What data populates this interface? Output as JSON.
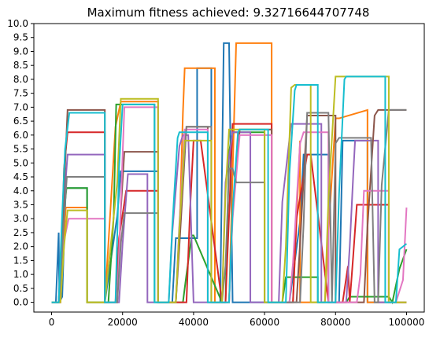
{
  "chart_data": {
    "type": "line",
    "title": "Maximum fitness achieved: 9.32716644707748",
    "xlabel": "",
    "ylabel": "",
    "xlim": [
      -5000,
      105000
    ],
    "ylim": [
      -0.35,
      10.0
    ],
    "x_ticks": [
      0,
      20000,
      40000,
      60000,
      80000,
      100000
    ],
    "y_ticks": [
      0.0,
      0.5,
      1.0,
      1.5,
      2.0,
      2.5,
      3.0,
      3.5,
      4.0,
      4.5,
      5.0,
      5.5,
      6.0,
      6.5,
      7.0,
      7.5,
      8.0,
      8.5,
      9.0,
      9.5,
      10.0
    ],
    "grid": false,
    "legend": "none",
    "series_colors": [
      "#1f77b4",
      "#ff7f0e",
      "#2ca02c",
      "#d62728",
      "#9467bd",
      "#8c564b",
      "#e377c2",
      "#7f7f7f",
      "#bcbd22",
      "#17becf"
    ],
    "series": [
      {
        "x": [
          0,
          1200,
          2000,
          2200,
          3000,
          4000,
          10000,
          10000,
          15000,
          15000,
          18500,
          19500,
          30000,
          30000,
          34000,
          35000,
          41000,
          41000,
          45000,
          45000,
          47500,
          48500,
          50000,
          51000,
          60000,
          60000,
          67000,
          67000,
          70000,
          71000,
          78000,
          78000,
          81000,
          82000,
          89000,
          89000,
          95000,
          95000,
          100000
        ],
        "y": [
          0,
          0,
          2.5,
          0,
          0.2,
          4.1,
          4.1,
          0,
          0,
          0,
          3.1,
          4.7,
          4.7,
          0,
          0,
          2.3,
          2.3,
          8.4,
          8.4,
          0,
          0,
          9.3,
          9.3,
          0,
          0,
          0,
          0,
          0,
          2.9,
          5.3,
          5.3,
          0,
          0,
          5.8,
          5.8,
          0,
          0,
          0,
          0
        ]
      },
      {
        "x": [
          0,
          2000,
          3000,
          4000,
          10000,
          10000,
          15000,
          15000,
          18000,
          19500,
          30000,
          30000,
          35000,
          36000,
          37000,
          37500,
          46000,
          46000,
          50000,
          50000,
          52000,
          62000,
          62000,
          67000,
          68000,
          70000,
          70000,
          77000,
          78000,
          80000,
          81000,
          89000,
          89000,
          95000,
          95000,
          100000
        ],
        "y": [
          0,
          0,
          1.4,
          3.4,
          3.4,
          0,
          0,
          0,
          6.3,
          7.2,
          7.2,
          0,
          0,
          2.4,
          6.8,
          8.4,
          8.4,
          0,
          0,
          0,
          9.3,
          9.3,
          0,
          0,
          0,
          5.8,
          0,
          0,
          2.5,
          6.6,
          6.6,
          6.9,
          0,
          0,
          0,
          0
        ]
      },
      {
        "x": [
          0,
          2000,
          3000,
          4200,
          10000,
          10000,
          15000,
          16000,
          17500,
          18200,
          29000,
          29000,
          37000,
          38000,
          39500,
          40000,
          48000,
          49000,
          50000,
          51000,
          60000,
          60000,
          65000,
          66000,
          75000,
          75000,
          83000,
          84000,
          95000,
          96000,
          98000,
          100000
        ],
        "y": [
          0,
          0,
          2.6,
          4.1,
          4.1,
          0,
          0,
          0,
          3.1,
          7.1,
          7.1,
          0,
          0,
          1.0,
          2.4,
          2.4,
          0,
          0,
          5.4,
          6.1,
          6.1,
          0,
          0,
          0.9,
          0.9,
          0,
          0,
          0.2,
          0.2,
          0,
          1.2,
          1.9
        ]
      },
      {
        "x": [
          0,
          2500,
          3500,
          4500,
          15000,
          15000,
          18000,
          19000,
          21000,
          21500,
          30000,
          30000,
          38000,
          39000,
          40000,
          42000,
          48000,
          49000,
          50000,
          51000,
          62000,
          62000,
          68000,
          69000,
          72000,
          73000,
          78000,
          78000,
          82000,
          83500,
          84000,
          85000,
          86000,
          87000,
          95000,
          95000,
          100000
        ],
        "y": [
          0,
          0,
          4.8,
          6.1,
          6.1,
          0,
          0,
          2.3,
          4.0,
          4.0,
          4.0,
          0,
          0,
          3.3,
          5.8,
          5.8,
          0,
          0,
          3.1,
          6.4,
          6.4,
          0,
          0,
          3.0,
          5.3,
          5.3,
          0,
          0,
          0,
          1.3,
          0,
          1.7,
          3.5,
          3.5,
          3.5,
          0,
          0
        ]
      },
      {
        "x": [
          0,
          2000,
          3000,
          4500,
          15000,
          15000,
          19000,
          20000,
          21500,
          22000,
          27000,
          27000,
          33000,
          34000,
          36000,
          37000,
          38500,
          40000,
          41000,
          43000,
          45000,
          48000,
          49000,
          51000,
          56000,
          56000,
          64000,
          65000,
          67500,
          68000,
          76000,
          76000,
          83000,
          84000,
          85000,
          85500,
          92000,
          92000,
          100000
        ],
        "y": [
          0,
          0,
          2.7,
          5.3,
          5.3,
          0,
          0,
          2.1,
          4.6,
          4.6,
          4.6,
          0,
          0,
          2.5,
          5.6,
          6.0,
          6.0,
          0,
          0,
          0,
          0,
          0,
          4.3,
          6.1,
          6.1,
          0,
          0,
          3.6,
          6.4,
          6.4,
          6.4,
          0,
          0,
          2.0,
          4.6,
          5.8,
          5.8,
          0,
          0
        ]
      },
      {
        "x": [
          0,
          2200,
          3200,
          4500,
          15000,
          15000,
          18500,
          19500,
          20500,
          21500,
          30000,
          30000,
          35000,
          36000,
          38000,
          44000,
          44000,
          50000,
          51000,
          53000,
          62000,
          62000,
          69000,
          70000,
          72000,
          73000,
          80000,
          80000,
          88000,
          89000,
          91000,
          92000,
          94000,
          100000
        ],
        "y": [
          0,
          0,
          3.2,
          6.9,
          6.9,
          0,
          0,
          3.3,
          5.4,
          5.4,
          5.4,
          0,
          0,
          2.0,
          6.3,
          6.3,
          0,
          0,
          3.2,
          6.2,
          6.2,
          0,
          0,
          2.1,
          6.7,
          6.7,
          6.7,
          0,
          0,
          2.7,
          6.7,
          6.9,
          6.9,
          6.9
        ]
      },
      {
        "x": [
          0,
          2500,
          3500,
          4800,
          15000,
          15000,
          18500,
          19500,
          20500,
          21000,
          30000,
          30000,
          35000,
          36000,
          37500,
          38500,
          44000,
          44000,
          50000,
          51000,
          53000,
          62000,
          62000,
          67000,
          68000,
          70000,
          71000,
          78000,
          78000,
          86000,
          87000,
          88000,
          95000,
          95000,
          97000,
          99000,
          100000
        ],
        "y": [
          0,
          0,
          2.2,
          3.0,
          3.0,
          0,
          0,
          3.5,
          7.0,
          7.0,
          7.0,
          0,
          0,
          2.8,
          6.2,
          6.2,
          6.2,
          0,
          0,
          3.0,
          6.0,
          6.0,
          0,
          0,
          1.4,
          5.7,
          6.1,
          6.1,
          0,
          0,
          1.0,
          4.0,
          4.0,
          0,
          0,
          0.8,
          3.4
        ]
      },
      {
        "x": [
          0,
          2200,
          3200,
          4300,
          15000,
          15000,
          18500,
          19500,
          20500,
          21000,
          30000,
          30000,
          35000,
          36000,
          38000,
          45000,
          45000,
          48000,
          49000,
          50000,
          51000,
          52000,
          60000,
          60000,
          70000,
          71000,
          72000,
          73000,
          78000,
          79000,
          80000,
          81000,
          90000,
          91000,
          92000,
          93000,
          95000,
          100000
        ],
        "y": [
          0,
          0,
          2.4,
          4.5,
          4.5,
          0,
          0,
          2.1,
          3.2,
          3.2,
          3.2,
          0,
          0,
          2.7,
          6.3,
          6.3,
          0,
          0,
          1.3,
          4.8,
          4.8,
          4.3,
          4.3,
          0,
          0,
          2.8,
          6.8,
          6.8,
          6.8,
          0,
          5.7,
          5.9,
          5.9,
          0,
          0,
          4.2,
          6.9,
          6.9
        ]
      },
      {
        "x": [
          0,
          2500,
          3500,
          4500,
          10000,
          10000,
          15000,
          15000,
          18500,
          19500,
          30000,
          30000,
          35000,
          36000,
          37500,
          38000,
          45000,
          45000,
          48000,
          49000,
          50000,
          51000,
          60000,
          60000,
          65000,
          66000,
          67500,
          68500,
          73000,
          73000,
          77000,
          78000,
          80000,
          81000,
          95000,
          95000,
          100000
        ],
        "y": [
          0,
          0,
          2.0,
          3.3,
          3.3,
          0,
          0,
          0,
          4.3,
          7.3,
          7.3,
          0,
          0,
          2.6,
          5.8,
          5.8,
          5.8,
          0,
          0,
          3.9,
          6.2,
          6.2,
          6.2,
          0,
          0,
          2.0,
          7.7,
          7.8,
          7.8,
          0,
          0,
          3.7,
          8.1,
          8.1,
          8.1,
          0,
          0
        ]
      },
      {
        "x": [
          0,
          2000,
          2800,
          3800,
          5000,
          15000,
          15000,
          18000,
          19000,
          20000,
          29000,
          29000,
          33000,
          34000,
          35500,
          36000,
          44000,
          44000,
          50000,
          51000,
          52500,
          53000,
          61000,
          61000,
          66000,
          67000,
          68500,
          69000,
          75000,
          75000,
          80000,
          81000,
          82500,
          83000,
          94000,
          94000,
          97000,
          98000,
          100000
        ],
        "y": [
          0,
          0,
          2.6,
          5.5,
          6.8,
          6.8,
          0,
          0,
          4.8,
          7.1,
          7.1,
          0,
          0,
          2.7,
          5.9,
          6.1,
          6.1,
          0,
          0,
          3.3,
          6.1,
          6.2,
          6.2,
          0,
          0,
          4.6,
          7.6,
          7.8,
          7.8,
          0,
          0,
          3.9,
          8.0,
          8.1,
          8.1,
          0,
          0,
          1.9,
          2.1
        ]
      }
    ]
  }
}
